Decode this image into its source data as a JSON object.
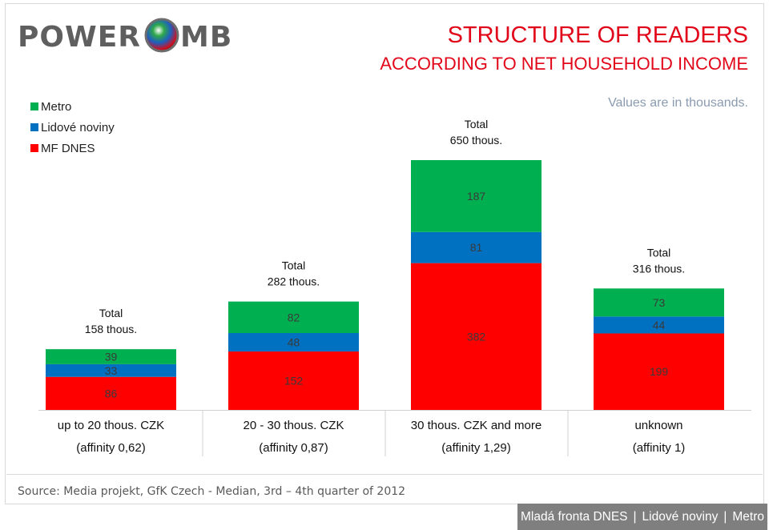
{
  "header": {
    "title": "STRUCTURE OF READERS",
    "subtitle": "ACCORDING TO NET HOUSEHOLD INCOME",
    "note": "Values are in thousands.",
    "logo_text": "POWER KOMBI"
  },
  "colors": {
    "metro": "#00b050",
    "lidove": "#0070c0",
    "mfdnes": "#ff0000",
    "accent": "#e2061a",
    "footer_bg": "#7f7f7f"
  },
  "legend": [
    {
      "label": "Metro",
      "color": "#00b050"
    },
    {
      "label": "Lidové noviny",
      "color": "#0070c0"
    },
    {
      "label": "MF DNES",
      "color": "#ff0000"
    }
  ],
  "chart_data": {
    "type": "bar",
    "stacked": true,
    "categories": [
      "up to 20 thous. CZK",
      "20 - 30 thous. CZK",
      "30 thous. CZK and more",
      "unknown"
    ],
    "affinity": [
      "(affinity 0,62)",
      "(affinity 0,87)",
      "(affinity 1,29)",
      "(affinity 1)"
    ],
    "totals_label": "Total",
    "totals": [
      "158 thous.",
      "282 thous.",
      "650 thous.",
      "316 thous."
    ],
    "series": [
      {
        "name": "MF DNES",
        "color": "#ff0000",
        "values": [
          86,
          152,
          382,
          199
        ]
      },
      {
        "name": "Lidové noviny",
        "color": "#0070c0",
        "values": [
          33,
          48,
          81,
          44
        ]
      },
      {
        "name": "Metro",
        "color": "#00b050",
        "values": [
          39,
          82,
          187,
          73
        ]
      }
    ]
  },
  "source": "Source: Media projekt, GfK Czech - Median, 3rd – 4th quarter of 2012",
  "footer": {
    "items": [
      "Mladá fronta DNES",
      "Lidové noviny",
      "Metro"
    ],
    "separator": "|"
  }
}
